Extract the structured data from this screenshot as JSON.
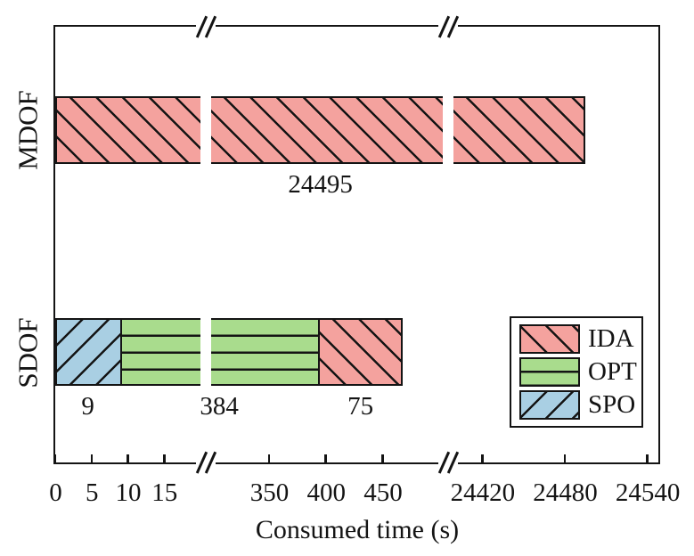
{
  "chart_data": {
    "type": "bar",
    "orientation": "horizontal",
    "title": "",
    "xlabel": "Consumed time (s)",
    "ylabel": "",
    "categories": [
      "MDOF",
      "SDOF"
    ],
    "series": [
      {
        "name": "SPO",
        "color": "#A9CFE3",
        "hatch": "/",
        "values": [
          0,
          9
        ]
      },
      {
        "name": "OPT",
        "color": "#A9DC8D",
        "hatch": "-",
        "values": [
          0,
          384
        ]
      },
      {
        "name": "IDA",
        "color": "#F4A29E",
        "hatch": "\\",
        "values": [
          24495,
          75
        ]
      }
    ],
    "bar_value_labels": [
      [
        "24495"
      ],
      [
        "9",
        "384",
        "75"
      ]
    ],
    "x_ticks": [
      0,
      5,
      10,
      15,
      350,
      400,
      450,
      24420,
      24480,
      24540
    ],
    "x_tick_labels": [
      "0",
      "5",
      "10",
      "15",
      "350",
      "400",
      "450",
      "24420",
      "24480",
      "24540"
    ],
    "x_range": [
      0,
      24548
    ],
    "axis_breaks": [
      [
        20,
        299
      ],
      [
        503,
        24399
      ]
    ],
    "legend": {
      "position": "lower right",
      "entries": [
        "IDA",
        "OPT",
        "SPO"
      ]
    },
    "grid": false,
    "hatch_color": "#141414",
    "background_color": "#ffffff"
  }
}
